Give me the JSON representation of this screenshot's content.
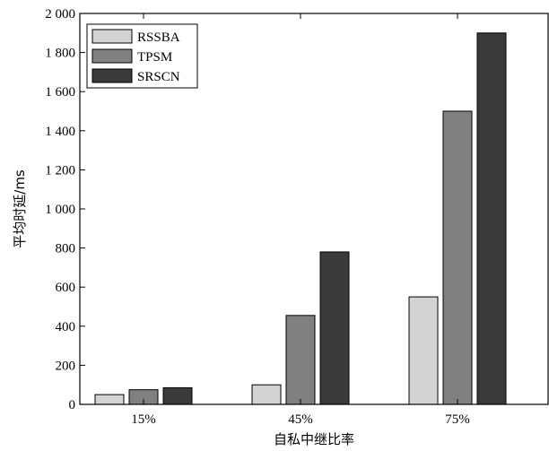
{
  "chart_data": {
    "type": "bar",
    "xlabel": "自私中继比率",
    "ylabel": "平均时延/ms",
    "categories": [
      "15%",
      "45%",
      "75%"
    ],
    "yticks": [
      "0",
      "200",
      "400",
      "600",
      "800",
      "1 000",
      "1 200",
      "1 400",
      "1 600",
      "1 800",
      "2 000"
    ],
    "ylim": [
      0,
      2000
    ],
    "grid": false,
    "legend_position": "top-left",
    "series": [
      {
        "name": "RSSBA",
        "color": "#d3d3d3",
        "values": [
          50,
          100,
          550
        ]
      },
      {
        "name": "TPSM",
        "color": "#808080",
        "values": [
          75,
          455,
          1500
        ]
      },
      {
        "name": "SRSCN",
        "color": "#3a3a3a",
        "values": [
          85,
          780,
          1900
        ]
      }
    ]
  }
}
